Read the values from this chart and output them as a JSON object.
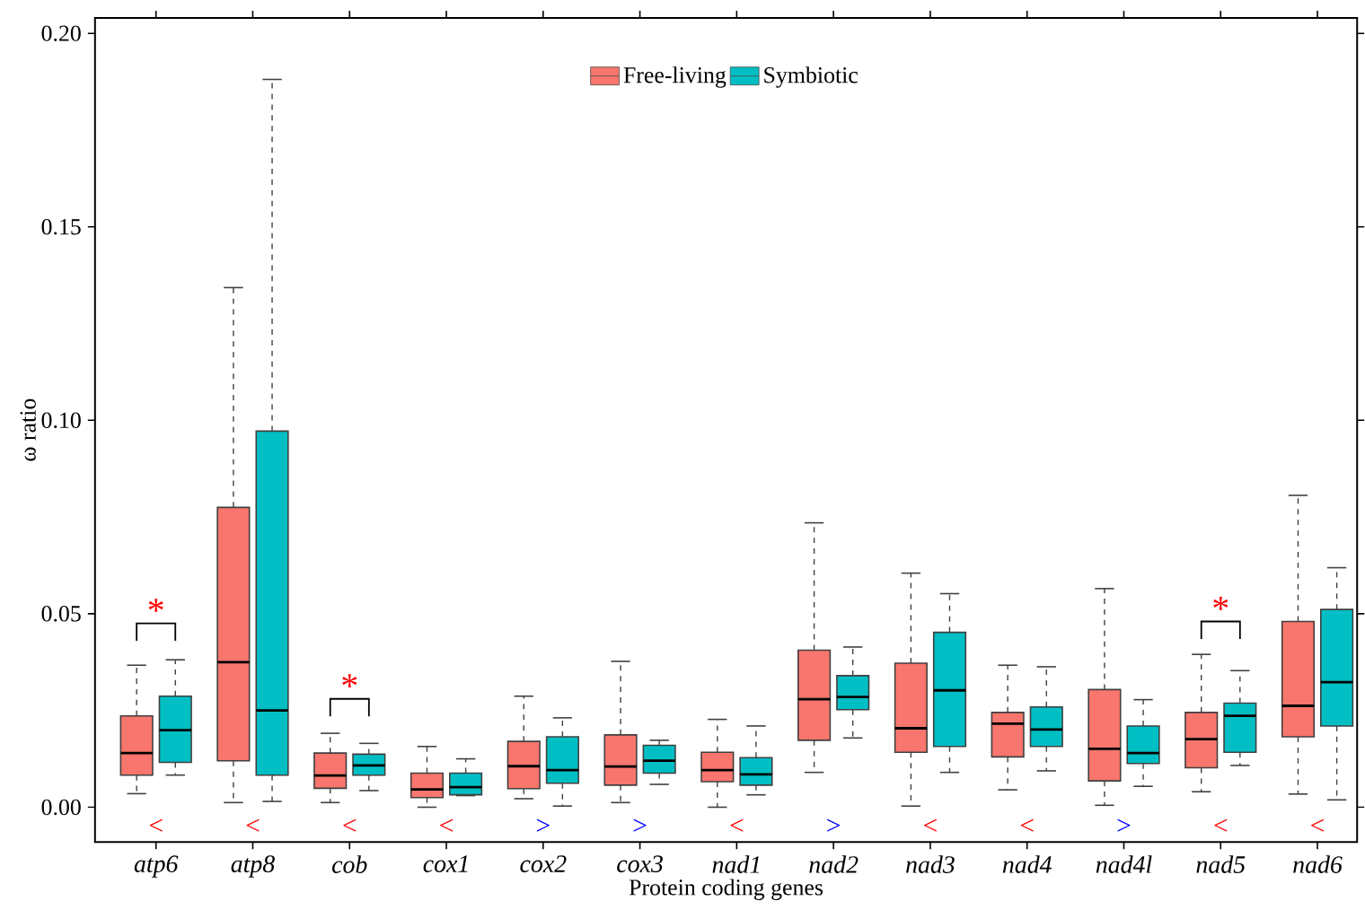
{
  "chart_data": {
    "type": "box",
    "xlabel": "Protein coding genes",
    "ylabel": "ω ratio",
    "categories": [
      "atp6",
      "atp8",
      "cob",
      "cox1",
      "cox2",
      "cox3",
      "nad1",
      "nad2",
      "nad3",
      "nad4",
      "nad4l",
      "nad5",
      "nad6"
    ],
    "series": [
      {
        "name": "Free-living",
        "color": "#f8766d",
        "boxes": [
          {
            "low": 0.0035,
            "q1": 0.0083,
            "median": 0.014,
            "q3": 0.0236,
            "high": 0.0367
          },
          {
            "low": 0.0012,
            "q1": 0.012,
            "median": 0.0375,
            "q3": 0.0775,
            "high": 0.1343
          },
          {
            "low": 0.0012,
            "q1": 0.0049,
            "median": 0.0082,
            "q3": 0.014,
            "high": 0.0191
          },
          {
            "low": 0.0,
            "q1": 0.0025,
            "median": 0.0046,
            "q3": 0.0088,
            "high": 0.0157
          },
          {
            "low": 0.0022,
            "q1": 0.0048,
            "median": 0.0106,
            "q3": 0.017,
            "high": 0.0287
          },
          {
            "low": 0.0012,
            "q1": 0.0057,
            "median": 0.0105,
            "q3": 0.0187,
            "high": 0.0377
          },
          {
            "low": 0.0,
            "q1": 0.0066,
            "median": 0.0096,
            "q3": 0.0142,
            "high": 0.0227
          },
          {
            "low": 0.009,
            "q1": 0.0173,
            "median": 0.0279,
            "q3": 0.0406,
            "high": 0.0735
          },
          {
            "low": 0.0003,
            "q1": 0.0142,
            "median": 0.0204,
            "q3": 0.0372,
            "high": 0.0605
          },
          {
            "low": 0.0045,
            "q1": 0.013,
            "median": 0.0216,
            "q3": 0.0245,
            "high": 0.0367
          },
          {
            "low": 0.0005,
            "q1": 0.0068,
            "median": 0.0151,
            "q3": 0.0304,
            "high": 0.0565
          },
          {
            "low": 0.004,
            "q1": 0.0102,
            "median": 0.0176,
            "q3": 0.0245,
            "high": 0.0395
          },
          {
            "low": 0.0034,
            "q1": 0.0182,
            "median": 0.0262,
            "q3": 0.048,
            "high": 0.0806
          }
        ]
      },
      {
        "name": "Symbiotic",
        "color": "#00bfc4",
        "boxes": [
          {
            "low": 0.0083,
            "q1": 0.0116,
            "median": 0.0199,
            "q3": 0.0287,
            "high": 0.0381
          },
          {
            "low": 0.0015,
            "q1": 0.0083,
            "median": 0.025,
            "q3": 0.0972,
            "high": 0.1881
          },
          {
            "low": 0.0043,
            "q1": 0.0083,
            "median": 0.0108,
            "q3": 0.0137,
            "high": 0.0165
          },
          {
            "low": 0.003,
            "q1": 0.0032,
            "median": 0.0052,
            "q3": 0.0088,
            "high": 0.0125
          },
          {
            "low": 0.0003,
            "q1": 0.0062,
            "median": 0.0096,
            "q3": 0.0182,
            "high": 0.0231
          },
          {
            "low": 0.0059,
            "q1": 0.0088,
            "median": 0.012,
            "q3": 0.016,
            "high": 0.0173
          },
          {
            "low": 0.0032,
            "q1": 0.0057,
            "median": 0.0085,
            "q3": 0.0128,
            "high": 0.021
          },
          {
            "low": 0.0179,
            "q1": 0.0252,
            "median": 0.0285,
            "q3": 0.034,
            "high": 0.0414
          },
          {
            "low": 0.009,
            "q1": 0.0157,
            "median": 0.0302,
            "q3": 0.0452,
            "high": 0.0552
          },
          {
            "low": 0.0094,
            "q1": 0.0157,
            "median": 0.0201,
            "q3": 0.0259,
            "high": 0.0363
          },
          {
            "low": 0.0054,
            "q1": 0.0113,
            "median": 0.014,
            "q3": 0.021,
            "high": 0.0278
          },
          {
            "low": 0.0108,
            "q1": 0.0142,
            "median": 0.0236,
            "q3": 0.0269,
            "high": 0.0353
          },
          {
            "low": 0.0019,
            "q1": 0.021,
            "median": 0.0323,
            "q3": 0.0511,
            "high": 0.0619
          }
        ]
      }
    ],
    "ylim": [
      -0.009,
      0.204
    ],
    "yticks": [
      {
        "value": 0,
        "label": "0.00"
      },
      {
        "value": 0.05,
        "label": "0.05"
      },
      {
        "value": 0.1,
        "label": "0.10"
      },
      {
        "value": 0.15,
        "label": "0.15"
      },
      {
        "value": 0.2,
        "label": "0.20"
      }
    ],
    "legend": "top",
    "grid": false,
    "annotations": [
      "*",
      "*",
      "*",
      "<",
      "<",
      "<",
      "<",
      ">",
      ">",
      "<",
      ">",
      "<",
      "<",
      ">",
      "<",
      "<"
    ]
  }
}
